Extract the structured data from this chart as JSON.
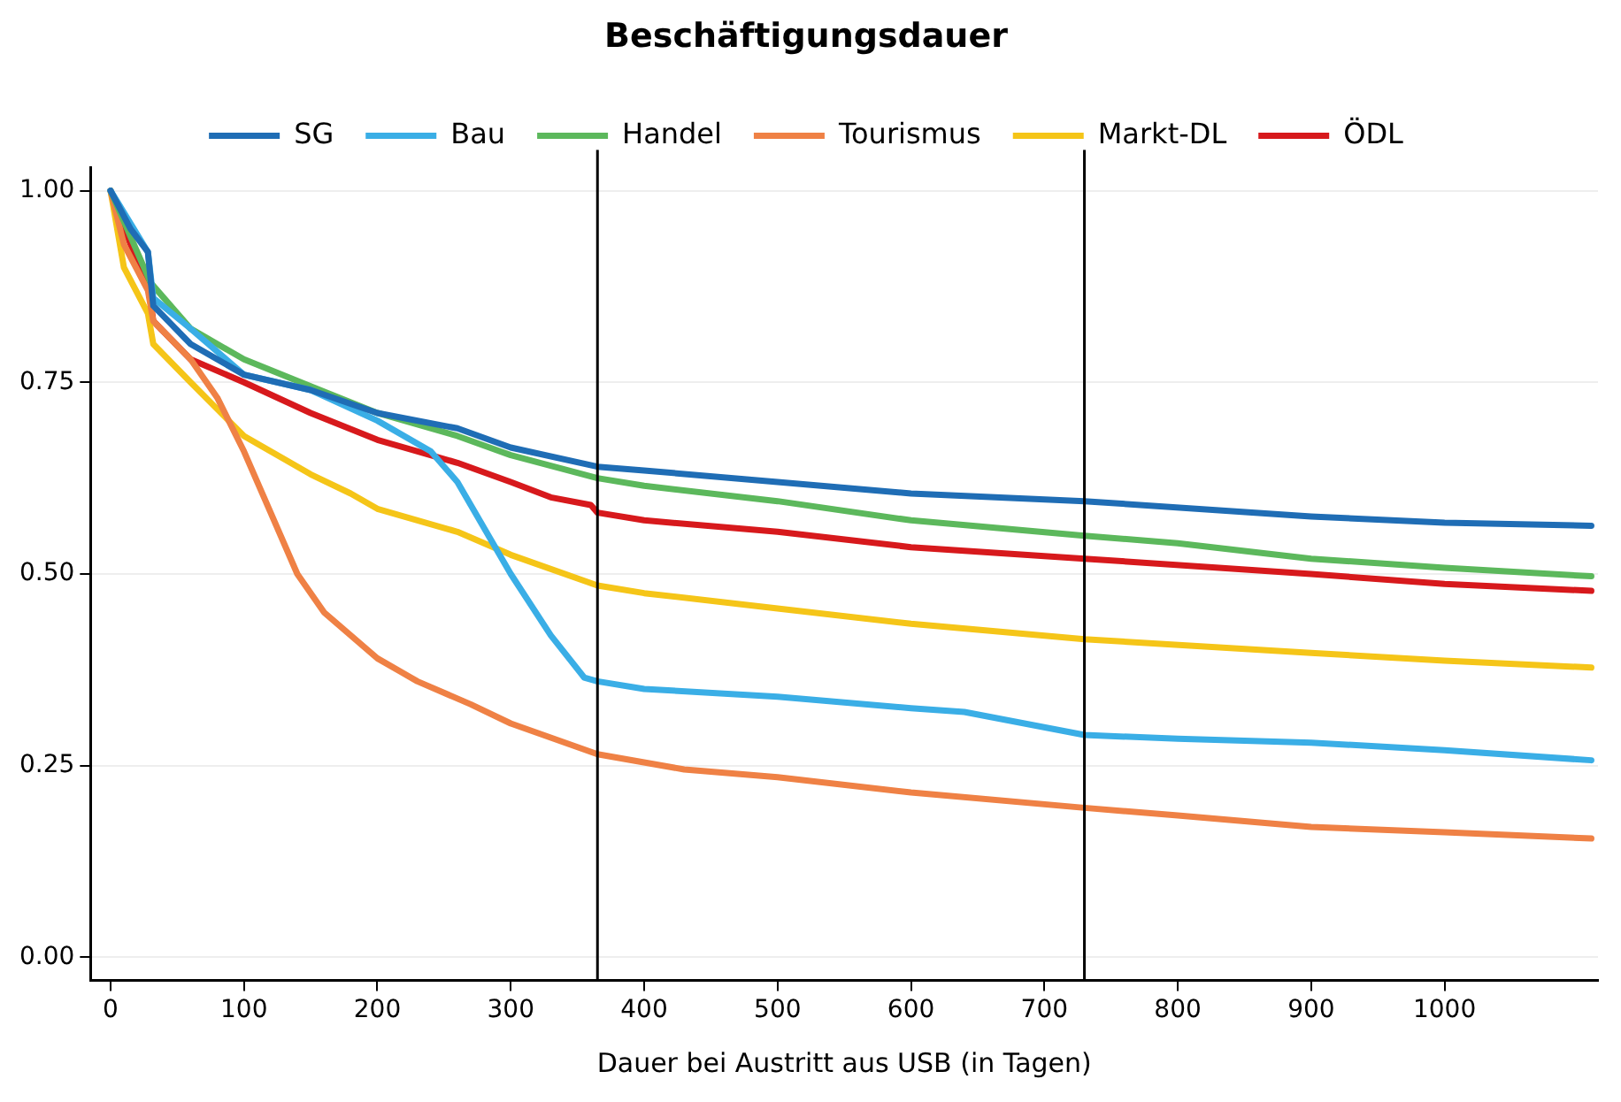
{
  "chart_data": {
    "type": "line",
    "title": "Beschäftigungsdauer",
    "xlabel": "Dauer bei Austritt aus USB (in Tagen)",
    "xlim": [
      -15,
      1115
    ],
    "xticks": [
      0,
      100,
      200,
      300,
      400,
      500,
      600,
      700,
      800,
      900,
      1000
    ],
    "ylim": [
      -0.03,
      1.03
    ],
    "yticks": [
      {
        "value": 0,
        "label": "0.00"
      },
      {
        "value": 0.25,
        "label": "0.25"
      },
      {
        "value": 0.5,
        "label": "0.50"
      },
      {
        "value": 0.75,
        "label": "0.75"
      },
      {
        "value": 1,
        "label": "1.00"
      }
    ],
    "grid": "y",
    "legend": "top",
    "marker": "none",
    "line_style": "solid",
    "ref_lines": [
      {
        "axis": "x",
        "value": 365,
        "color": "#000000"
      },
      {
        "axis": "x",
        "value": 730,
        "color": "#000000"
      }
    ],
    "series": [
      {
        "name": "SG",
        "color": "#1f6db5",
        "x": [
          0,
          15,
          28,
          32,
          60,
          100,
          150,
          200,
          260,
          300,
          365,
          400,
          500,
          600,
          730,
          900,
          1000,
          1110
        ],
        "values": [
          1.0,
          0.95,
          0.92,
          0.85,
          0.8,
          0.76,
          0.74,
          0.71,
          0.69,
          0.665,
          0.64,
          0.635,
          0.62,
          0.605,
          0.595,
          0.575,
          0.567,
          0.563
        ]
      },
      {
        "name": "Bau",
        "color": "#3aaee6",
        "x": [
          0,
          28,
          32,
          60,
          100,
          150,
          200,
          240,
          260,
          300,
          330,
          355,
          365,
          400,
          500,
          600,
          640,
          730,
          800,
          900,
          1000,
          1110
        ],
        "values": [
          1.0,
          0.92,
          0.86,
          0.82,
          0.76,
          0.74,
          0.7,
          0.66,
          0.62,
          0.5,
          0.42,
          0.365,
          0.36,
          0.35,
          0.34,
          0.325,
          0.32,
          0.29,
          0.285,
          0.28,
          0.27,
          0.257
        ]
      },
      {
        "name": "Handel",
        "color": "#5cb85c",
        "x": [
          0,
          30,
          60,
          100,
          150,
          200,
          260,
          300,
          365,
          400,
          500,
          600,
          730,
          800,
          900,
          1000,
          1110
        ],
        "values": [
          1.0,
          0.88,
          0.82,
          0.78,
          0.745,
          0.71,
          0.68,
          0.655,
          0.625,
          0.615,
          0.595,
          0.57,
          0.55,
          0.54,
          0.52,
          0.508,
          0.497
        ]
      },
      {
        "name": "Tourismus",
        "color": "#ef8145",
        "x": [
          0,
          10,
          28,
          32,
          60,
          80,
          100,
          120,
          140,
          160,
          200,
          230,
          270,
          300,
          365,
          430,
          500,
          600,
          730,
          800,
          900,
          1000,
          1110
        ],
        "values": [
          1.0,
          0.93,
          0.87,
          0.83,
          0.78,
          0.73,
          0.66,
          0.58,
          0.5,
          0.45,
          0.39,
          0.36,
          0.33,
          0.305,
          0.265,
          0.245,
          0.235,
          0.215,
          0.195,
          0.185,
          0.17,
          0.163,
          0.155
        ]
      },
      {
        "name": "Markt-DL",
        "color": "#f5c518",
        "x": [
          0,
          10,
          28,
          32,
          60,
          100,
          150,
          180,
          200,
          260,
          300,
          365,
          400,
          500,
          600,
          730,
          900,
          1000,
          1110
        ],
        "values": [
          1.0,
          0.9,
          0.84,
          0.8,
          0.75,
          0.68,
          0.63,
          0.605,
          0.585,
          0.555,
          0.525,
          0.485,
          0.475,
          0.455,
          0.435,
          0.415,
          0.397,
          0.387,
          0.378
        ]
      },
      {
        "name": "ÖDL",
        "color": "#d7191c",
        "x": [
          0,
          15,
          28,
          32,
          60,
          100,
          150,
          200,
          260,
          300,
          330,
          360,
          365,
          400,
          500,
          600,
          730,
          900,
          1000,
          1110
        ],
        "values": [
          1.0,
          0.93,
          0.88,
          0.83,
          0.78,
          0.75,
          0.71,
          0.675,
          0.645,
          0.62,
          0.6,
          0.59,
          0.58,
          0.57,
          0.555,
          0.535,
          0.52,
          0.5,
          0.487,
          0.478
        ]
      }
    ]
  }
}
